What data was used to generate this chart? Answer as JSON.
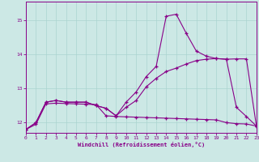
{
  "xlabel": "Windchill (Refroidissement éolien,°C)",
  "bg_color": "#cce8e5",
  "line_color": "#880088",
  "grid_color": "#aad4d0",
  "xlim": [
    0,
    23
  ],
  "ylim": [
    11.7,
    15.55
  ],
  "yticks": [
    12,
    13,
    14,
    15
  ],
  "xticks": [
    0,
    1,
    2,
    3,
    4,
    5,
    6,
    7,
    8,
    9,
    10,
    11,
    12,
    13,
    14,
    15,
    16,
    17,
    18,
    19,
    20,
    21,
    22,
    23
  ],
  "s1_x": [
    0,
    1,
    2,
    3,
    4,
    5,
    6,
    7,
    8,
    9,
    10,
    11,
    12,
    13,
    14,
    15,
    16,
    17,
    18,
    19,
    20,
    21,
    22,
    23
  ],
  "s1_y": [
    11.8,
    11.95,
    12.55,
    12.57,
    12.56,
    12.55,
    12.54,
    12.53,
    12.2,
    12.18,
    12.17,
    12.16,
    12.15,
    12.14,
    12.13,
    12.12,
    12.11,
    12.1,
    12.09,
    12.08,
    12.0,
    11.97,
    11.96,
    11.9
  ],
  "s2_x": [
    0,
    1,
    2,
    3,
    4,
    5,
    6,
    7,
    8,
    9,
    10,
    11,
    12,
    13,
    14,
    15,
    16,
    17,
    18,
    19,
    20,
    21,
    22,
    23
  ],
  "s2_y": [
    11.8,
    12.0,
    12.6,
    12.65,
    12.6,
    12.6,
    12.6,
    12.5,
    12.42,
    12.2,
    12.45,
    12.65,
    13.05,
    13.3,
    13.5,
    13.6,
    13.72,
    13.82,
    13.86,
    13.88,
    13.86,
    13.87,
    13.87,
    11.9
  ],
  "s3_x": [
    0,
    1,
    2,
    3,
    4,
    5,
    6,
    7,
    8,
    9,
    10,
    11,
    12,
    13,
    14,
    15,
    16,
    17,
    18,
    19,
    20,
    21,
    22,
    23
  ],
  "s3_y": [
    11.8,
    12.0,
    12.6,
    12.65,
    12.6,
    12.6,
    12.6,
    12.5,
    12.42,
    12.2,
    12.6,
    12.9,
    13.35,
    13.65,
    15.12,
    15.18,
    14.62,
    14.1,
    13.95,
    13.88,
    13.86,
    12.45,
    12.18,
    11.9
  ]
}
